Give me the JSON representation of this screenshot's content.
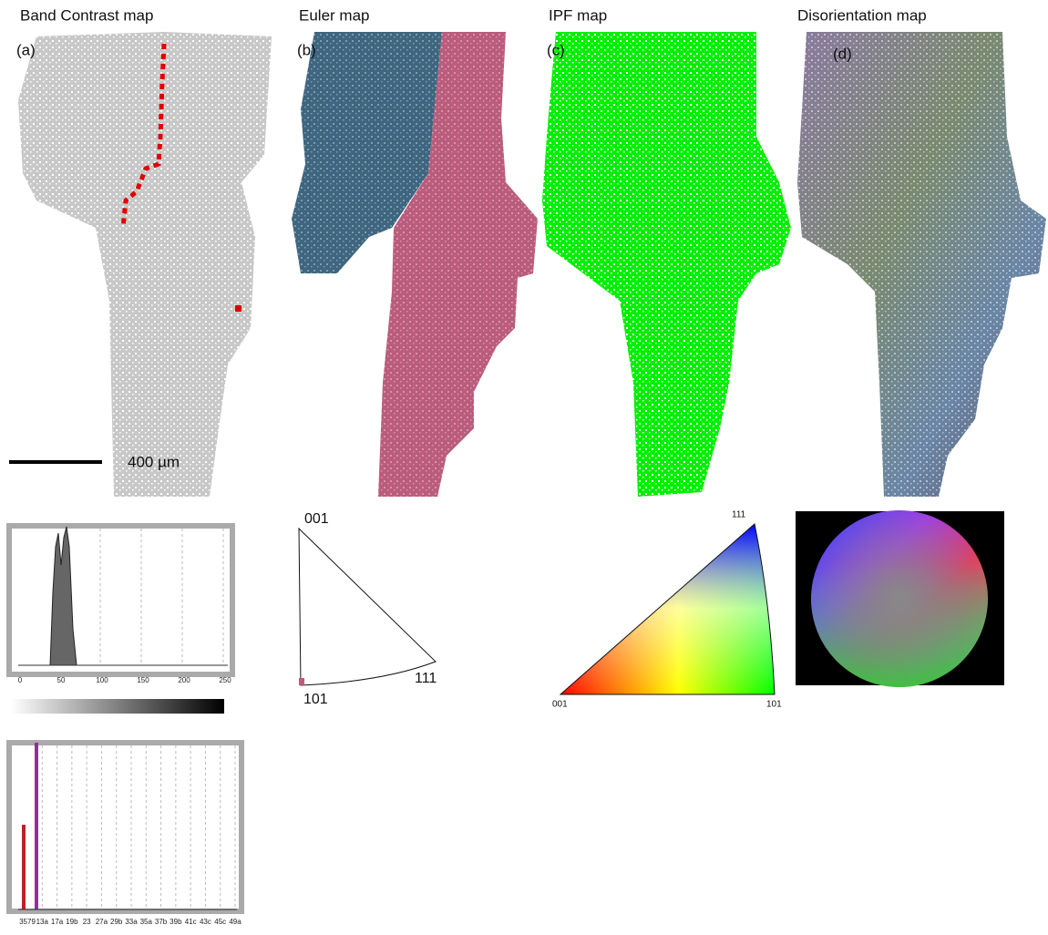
{
  "titles": [
    "Band Contrast map",
    "Euler map",
    "IPF map",
    "Disorientation map"
  ],
  "panel_labels": [
    "(a)",
    "(b)",
    "(c)",
    "(d)"
  ],
  "scale_bar": "400 µm",
  "band_contrast_histogram": {
    "ticks": [
      "0",
      "50",
      "100",
      "150",
      "200",
      "250"
    ]
  },
  "misorientation_histogram": {
    "ticks": [
      "3579",
      "13a",
      "17a",
      "19b",
      "23",
      "27a",
      "29b",
      "33a",
      "35a",
      "37b",
      "39b",
      "41c",
      "43c",
      "45c",
      "49a"
    ]
  },
  "euler_key": {
    "labels": [
      "001",
      "111",
      "101"
    ]
  },
  "ipf_key": {
    "labels": [
      "111",
      "001",
      "101"
    ]
  }
}
